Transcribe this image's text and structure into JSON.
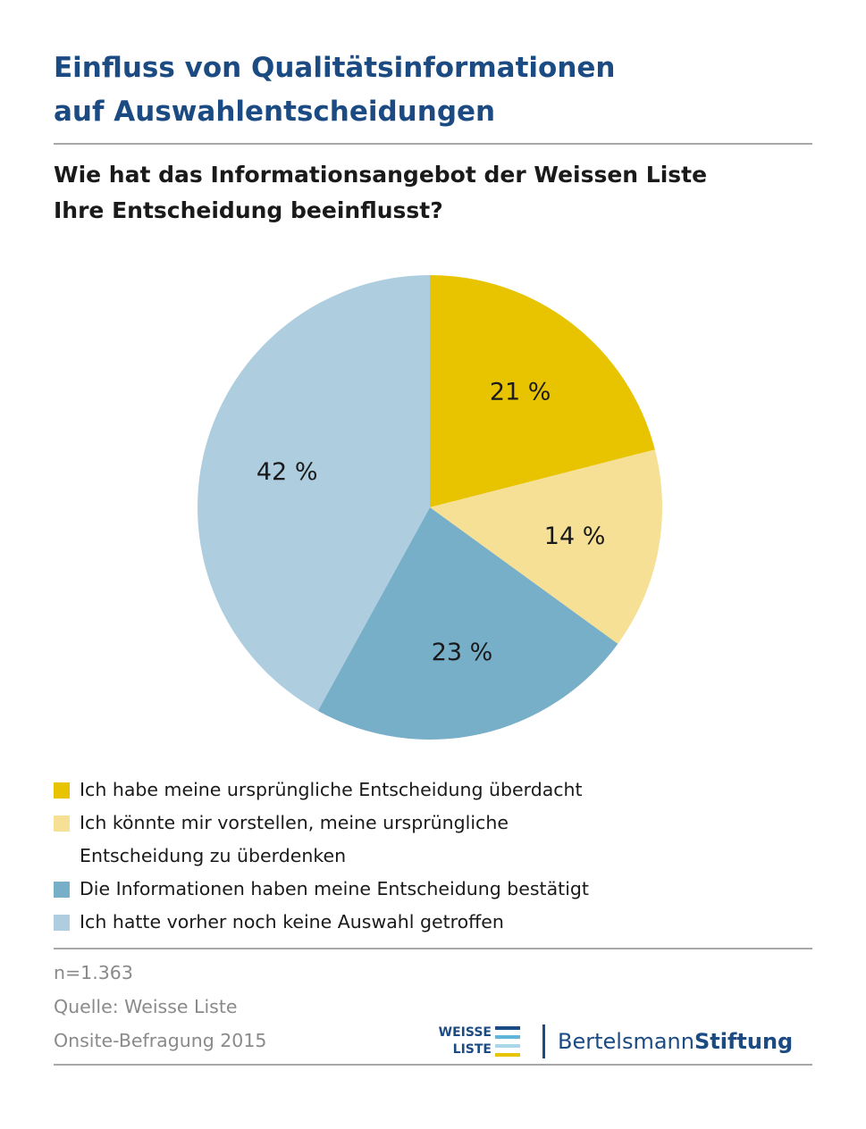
{
  "title_lines": [
    "Einfluss von Qualitätsinformationen",
    "auf Auswahlentscheidungen"
  ],
  "question_lines": [
    "Wie hat das Informationsangebot der Weissen Liste",
    "Ihre Entscheidung beeinflusst?"
  ],
  "chart_data": {
    "type": "pie",
    "start": "12 o'clock, clockwise",
    "slices": [
      {
        "label": "Ich habe meine ursprüngliche Entscheidung überdacht",
        "legend_lines": [
          "Ich habe meine ursprüngliche Entscheidung überdacht"
        ],
        "value": 21,
        "display": "21 %",
        "color": "#e8c300"
      },
      {
        "label": "Ich könnte mir vorstellen, meine ursprüngliche Entscheidung zu überdenken",
        "legend_lines": [
          "Ich könnte mir vorstellen, meine ursprüngliche",
          "Entscheidung zu überdenken"
        ],
        "value": 14,
        "display": "14 %",
        "color": "#f5e096"
      },
      {
        "label": "Die Informationen haben meine Entscheidung bestätigt",
        "legend_lines": [
          "Die Informationen haben meine Entscheidung bestätigt"
        ],
        "value": 23,
        "display": "23 %",
        "color": "#77aec8"
      },
      {
        "label": "Ich hatte vorher noch keine Auswahl getroffen",
        "legend_lines": [
          "Ich hatte vorher noch keine Auswahl getroffen"
        ],
        "value": 42,
        "display": "42 %",
        "color": "#aecee0"
      }
    ]
  },
  "footer": {
    "n": "n=1.363",
    "source": "Quelle: Weisse Liste",
    "survey": "Onsite-Befragung 2015"
  },
  "logos": {
    "weisse_liste": {
      "line1": "WEISSE",
      "line2": "LISTE",
      "bar_colors": [
        "#1b4b82",
        "#5fb6d9",
        "#aad7ea",
        "#e8c300"
      ]
    },
    "bertelsmann": {
      "regular": "Bertelsmann",
      "bold": "Stiftung"
    }
  },
  "colors": {
    "title": "#1b4b82",
    "rule": "#a8a8a8",
    "footer_text": "#8a8a8a"
  }
}
